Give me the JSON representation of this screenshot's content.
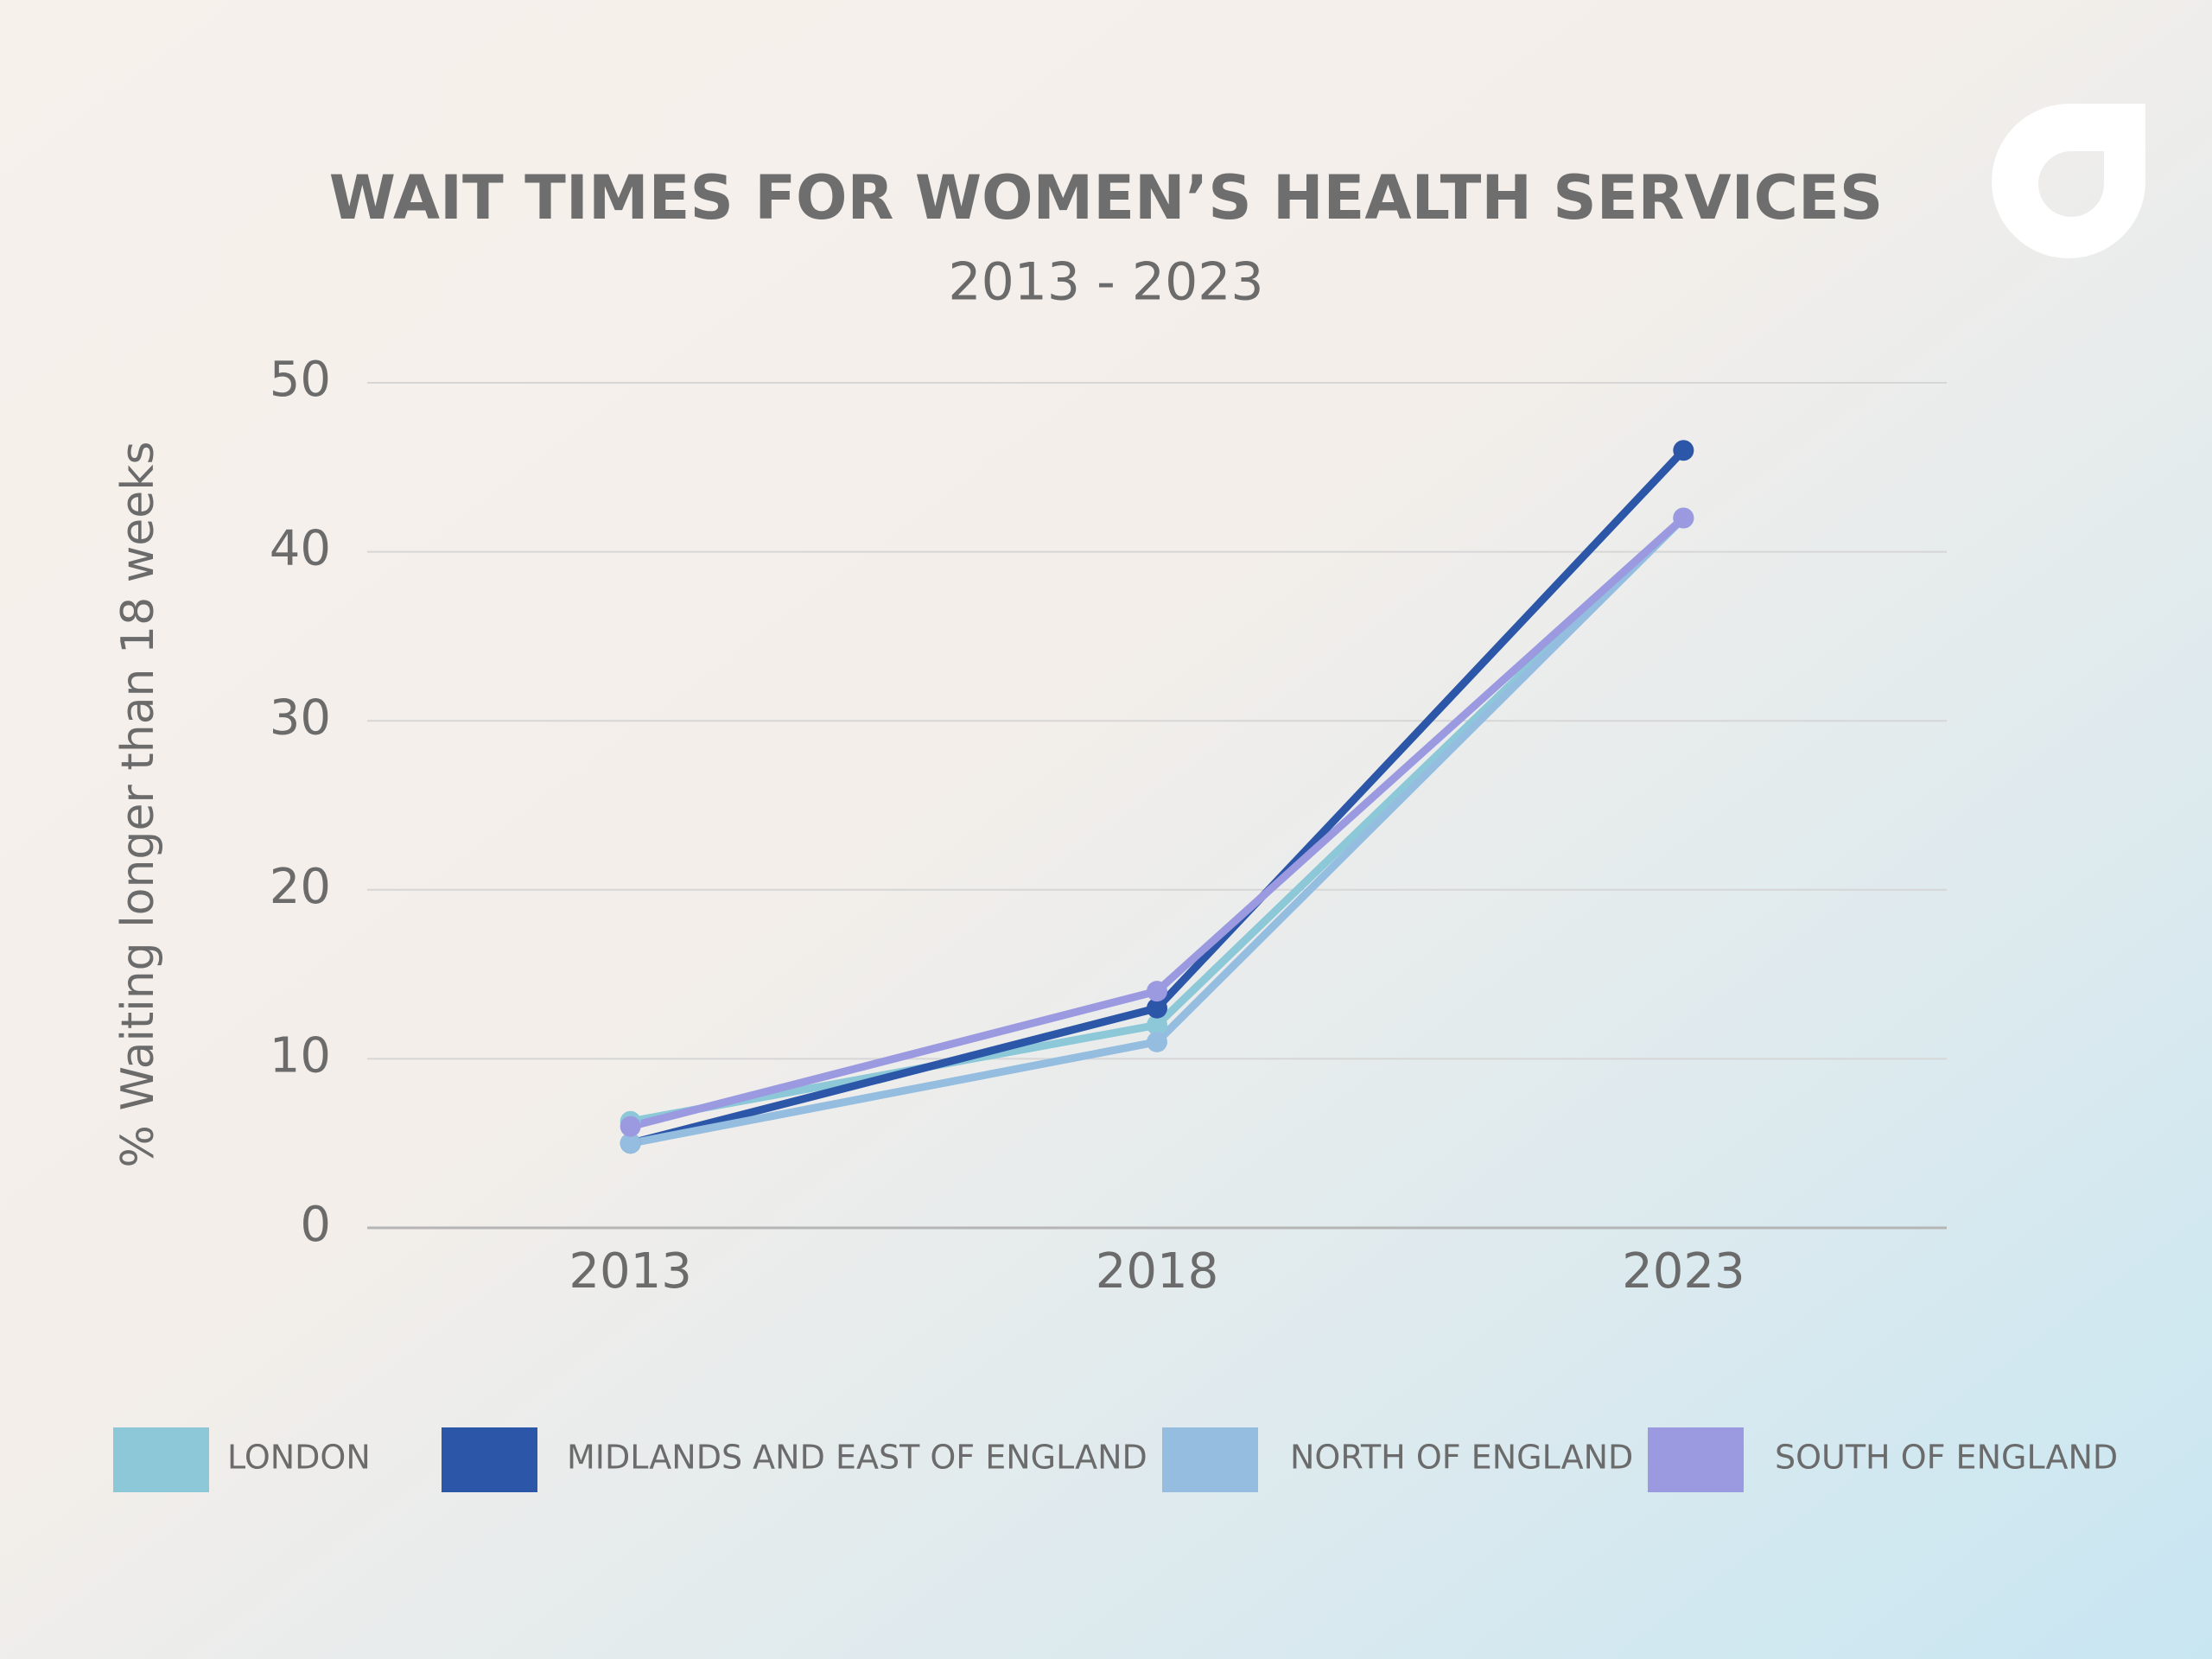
{
  "chart_data": {
    "type": "line",
    "title": "WAIT TIMES FOR WOMEN’S HEALTH SERVICES",
    "subtitle": "2013 - 2023",
    "y_label": "% Waiting longer than 18 weeks",
    "categories": [
      "2013",
      "2018",
      "2023"
    ],
    "series": [
      {
        "name": "LONDON",
        "color": "#8cc8d8",
        "values": [
          6.3,
          12,
          42
        ]
      },
      {
        "name": "MIDLANDS AND EAST OF ENGLAND",
        "color": "#2c56a8",
        "values": [
          5,
          13,
          46
        ]
      },
      {
        "name": "NORTH OF ENGLAND",
        "color": "#94bde0",
        "values": [
          5,
          11,
          42
        ]
      },
      {
        "name": "SOUTH OF ENGLAND",
        "color": "#9b99e0",
        "values": [
          6,
          14,
          42
        ]
      }
    ],
    "ylim": [
      0,
      50
    ],
    "yticks": [
      0,
      10,
      20,
      30,
      40,
      50
    ],
    "grid": true,
    "legend": "bottom"
  }
}
